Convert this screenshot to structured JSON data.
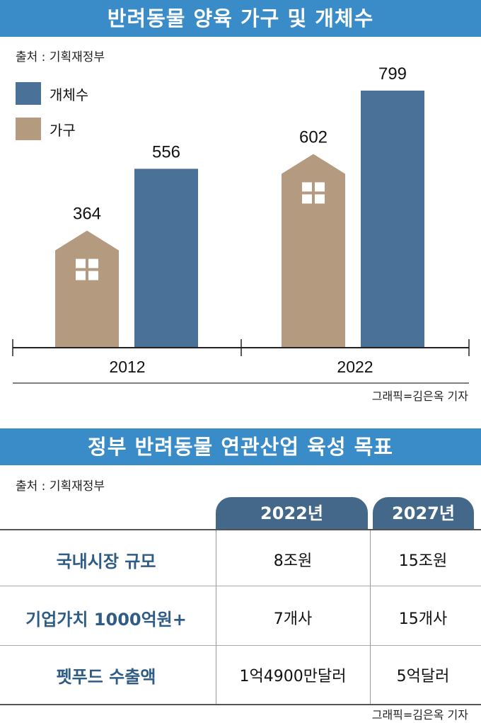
{
  "chart_section": {
    "title": "반려동물 양육 가구 및 개체수",
    "source": "출처 : 기획재정부",
    "credit": "그래픽=김은옥 기자",
    "colors": {
      "개체수": "#4a7299",
      "가구": "#b49a7f"
    }
  },
  "chart_data": {
    "type": "bar",
    "categories": [
      "2012",
      "2022"
    ],
    "series": [
      {
        "name": "가구",
        "values": [
          364,
          602
        ]
      },
      {
        "name": "개체수",
        "values": [
          556,
          799
        ]
      }
    ],
    "legend": [
      "개체수",
      "가구"
    ],
    "legend_position": "top-left",
    "ylim": [
      0,
      850
    ]
  },
  "table_section": {
    "title": "정부 반려동물 연관산업 육성 목표",
    "source": "출처 : 기획재정부",
    "credit": "그래픽=김은옥 기자",
    "columns": [
      "2022년",
      "2027년"
    ],
    "rows": [
      {
        "label": "국내시장 규모",
        "values": [
          "8조원",
          "15조원"
        ]
      },
      {
        "label": "기업가치 1000억원+",
        "values": [
          "7개사",
          "15개사"
        ]
      },
      {
        "label": "펫푸드 수출액",
        "values": [
          "1억4900만달러",
          "5억달러"
        ]
      }
    ]
  }
}
